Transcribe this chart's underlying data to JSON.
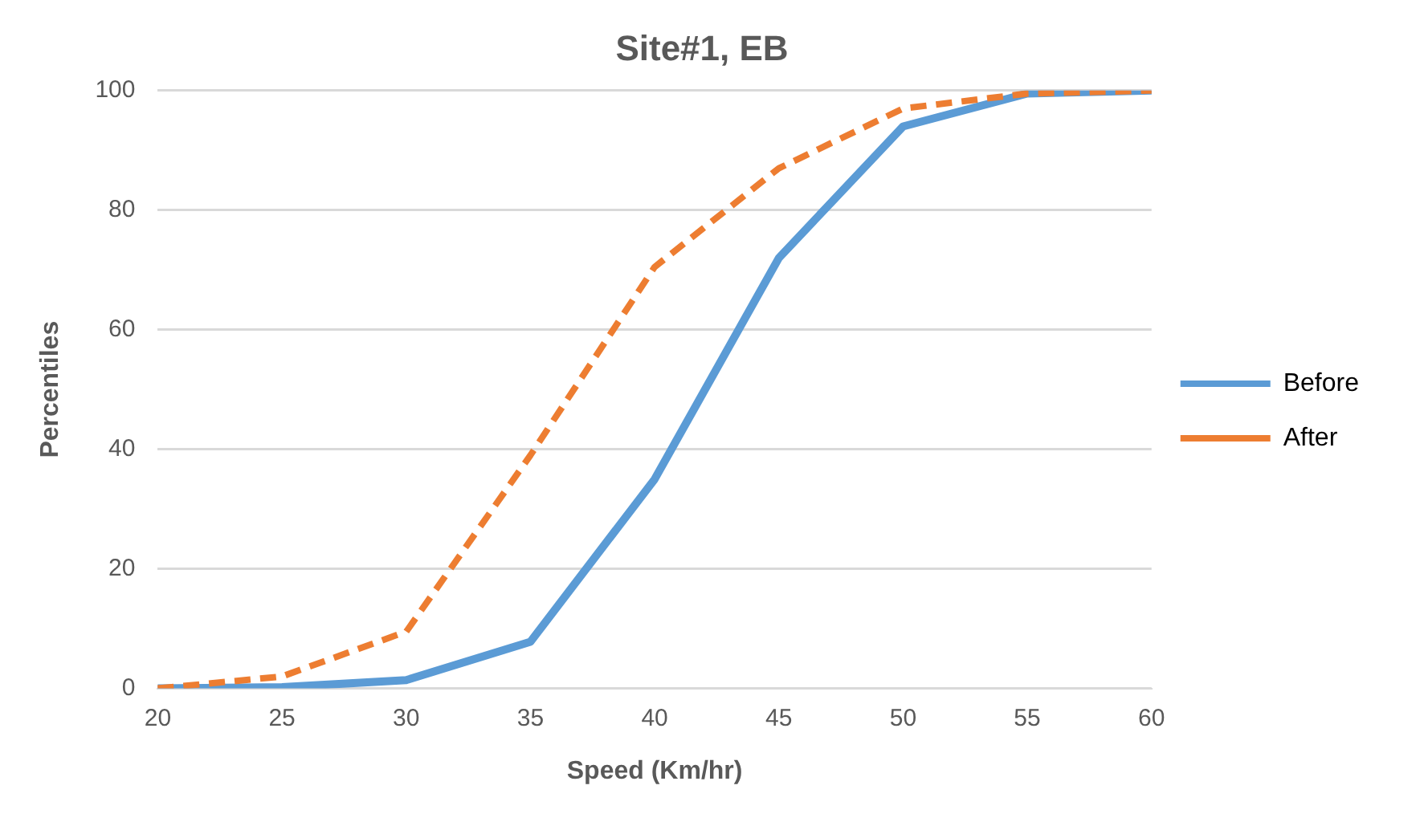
{
  "chart_data": {
    "type": "line",
    "title": "Site#1, EB",
    "xlabel": "Speed (Km/hr)",
    "ylabel": "Percentiles",
    "categories": [
      "20",
      "25",
      "30",
      "35",
      "40",
      "45",
      "50",
      "55",
      "60"
    ],
    "series": [
      {
        "name": "Before",
        "color": "#5b9bd5",
        "line_style": "solid",
        "values": [
          0,
          0.2,
          1.4,
          7.8,
          35,
          72,
          94,
          99.5,
          100
        ]
      },
      {
        "name": "After",
        "color": "#ed7d31",
        "line_style": "dashed",
        "values": [
          0,
          2,
          9.5,
          39,
          70.5,
          87,
          97,
          99.5,
          100
        ]
      }
    ],
    "ylim": [
      0,
      100
    ],
    "yticks": [
      0,
      20,
      40,
      60,
      80,
      100
    ],
    "grid": "y",
    "legend": "right",
    "marker": "none"
  }
}
